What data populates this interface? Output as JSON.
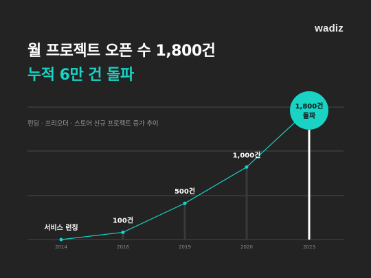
{
  "brand": "wadiz",
  "title_line1": "월 프로젝트 오픈 수 1,800건",
  "title_line2": "누적 6만 건 돌파",
  "chart_data": {
    "type": "line",
    "title": "월 프로젝트 오픈 수 1,800건 누적 6만 건 돌파",
    "subtitle": "펀딩 · 프리오더 · 스토어 신규 프로젝트 증가 추이",
    "x": [
      "2014",
      "2016",
      "2019",
      "2020",
      "2023"
    ],
    "values": [
      0,
      100,
      500,
      1000,
      1800
    ],
    "point_labels": [
      "서비스 런칭",
      "100건",
      "500건",
      "1,000건",
      "1,800건 돌파"
    ],
    "ylim": [
      0,
      1800
    ],
    "grid": true,
    "colors": {
      "line": "#19d3c5",
      "highlight": "#19d3c5",
      "drop_line": "#3a3a3a",
      "grid": "#4a4a4a",
      "axis_label": "#8a8a8a"
    }
  }
}
